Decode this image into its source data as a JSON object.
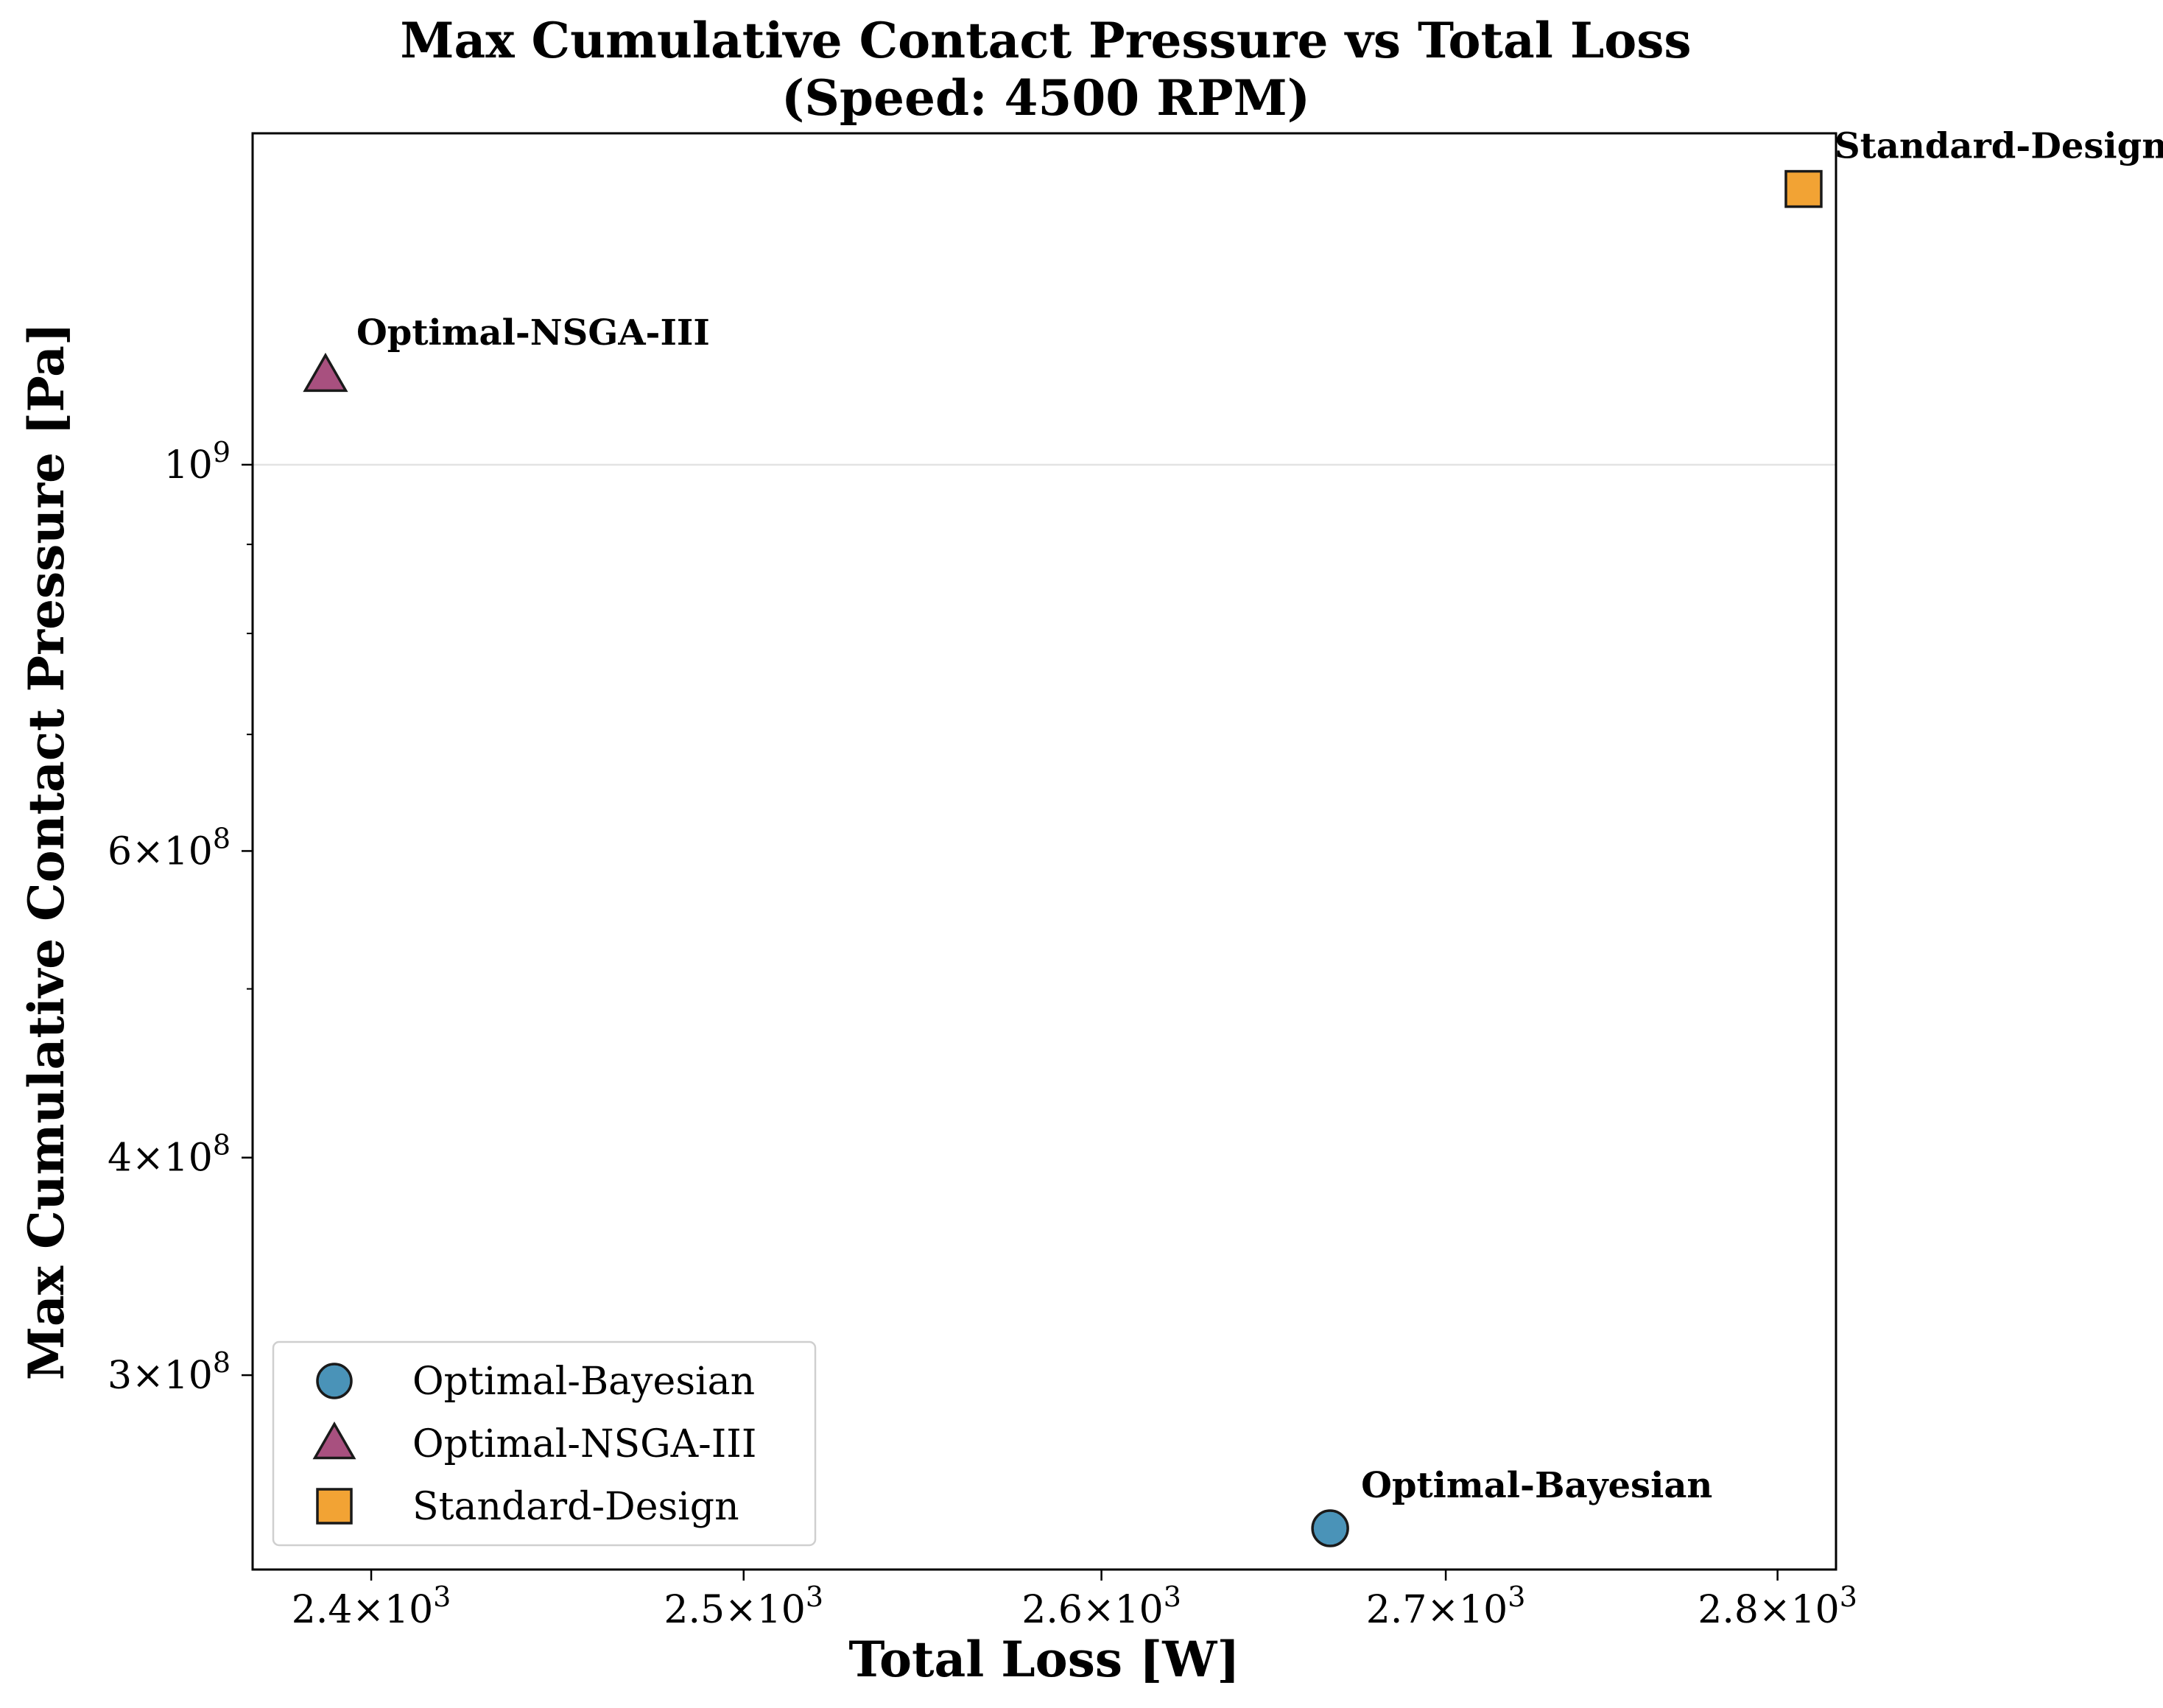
{
  "chart_data": {
    "type": "scatter",
    "title": [
      "Max Cumulative Contact Pressure vs Total Loss",
      "(Speed: 4500 RPM)"
    ],
    "xlabel": "Total Loss [W]",
    "ylabel": "Max Cumulative Contact Pressure [Pa]",
    "xscale": "log",
    "yscale": "log",
    "xlim": [
      2369,
      2818
    ],
    "ylim": [
      232000000,
      1550000000
    ],
    "x_ticks": [
      {
        "value": 2400,
        "mantissa": "2.4",
        "exp": "3"
      },
      {
        "value": 2500,
        "mantissa": "2.5",
        "exp": "3"
      },
      {
        "value": 2600,
        "mantissa": "2.6",
        "exp": "3"
      },
      {
        "value": 2700,
        "mantissa": "2.7",
        "exp": "3"
      },
      {
        "value": 2800,
        "mantissa": "2.8",
        "exp": "3"
      }
    ],
    "y_ticks": [
      {
        "value": 1000000000,
        "mantissa": "",
        "exp": "9"
      },
      {
        "value": 600000000,
        "mantissa": "6",
        "exp": "8"
      },
      {
        "value": 400000000,
        "mantissa": "4",
        "exp": "8"
      },
      {
        "value": 300000000,
        "mantissa": "3",
        "exp": "8"
      }
    ],
    "y_minor_ticks": [
      500000000,
      700000000,
      800000000,
      900000000
    ],
    "grid": "horizontal",
    "legend_position": "bottom-left",
    "series": [
      {
        "name": "Optimal-Bayesian",
        "marker": "circle",
        "color": "#4a93b8",
        "x": 2666,
        "y": 245000000,
        "label": "Optimal-Bayesian"
      },
      {
        "name": "Optimal-NSGA-III",
        "marker": "triangle",
        "color": "#a8507f",
        "x": 2388,
        "y": 1125000000,
        "label": "Optimal-NSGA-III"
      },
      {
        "name": "Standard-Design",
        "marker": "square",
        "color": "#f2a334",
        "x": 2808,
        "y": 1440000000,
        "label": "Standard-Design"
      }
    ]
  }
}
